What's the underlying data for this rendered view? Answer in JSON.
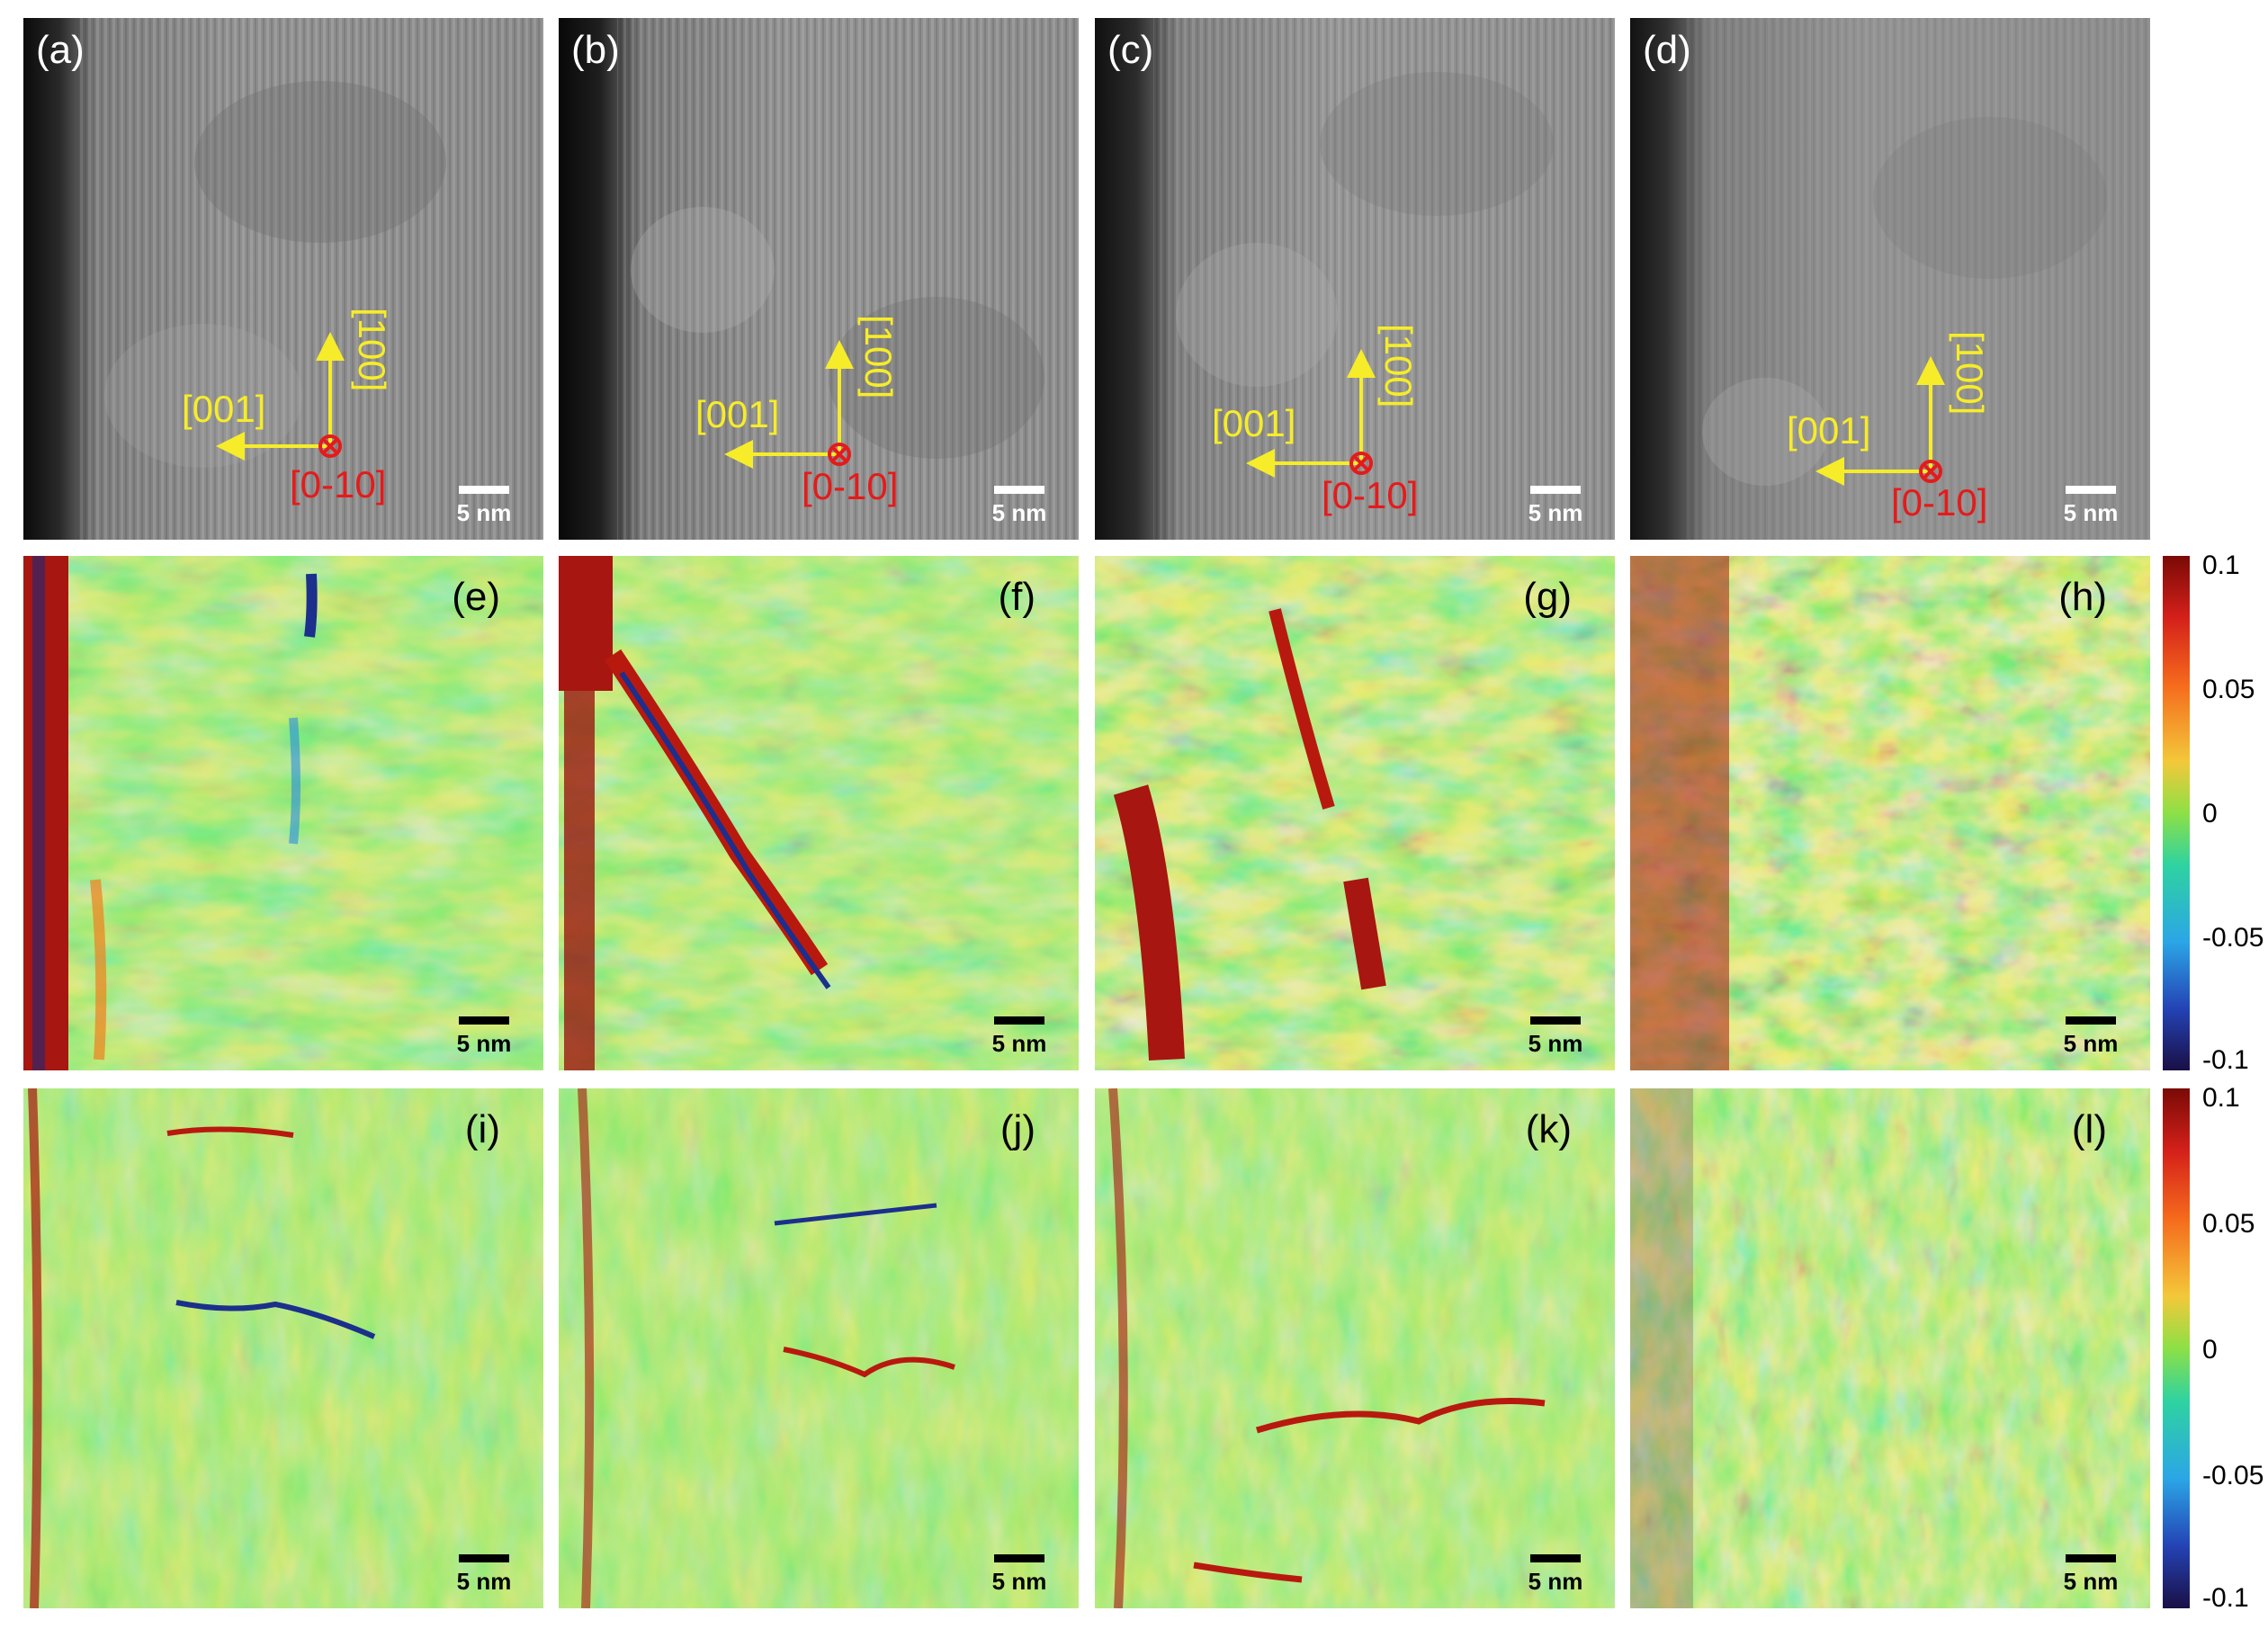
{
  "tem_panels": [
    {
      "label": "(a)",
      "axis_x": "[001]",
      "axis_y": "[100]",
      "axis_z": "[0-10]",
      "scale": "5 nm"
    },
    {
      "label": "(b)",
      "axis_x": "[001]",
      "axis_y": "[100]",
      "axis_z": "[0-10]",
      "scale": "5 nm"
    },
    {
      "label": "(c)",
      "axis_x": "[001]",
      "axis_y": "[100]",
      "axis_z": "[0-10]",
      "scale": "5 nm"
    },
    {
      "label": "(d)",
      "axis_x": "[001]",
      "axis_y": "[100]",
      "axis_z": "[0-10]",
      "scale": "5 nm"
    }
  ],
  "map_row1": [
    {
      "label": "(e)",
      "scale": "5 nm"
    },
    {
      "label": "(f)",
      "scale": "5 nm"
    },
    {
      "label": "(g)",
      "scale": "5 nm"
    },
    {
      "label": "(h)",
      "scale": "5 nm"
    }
  ],
  "map_row2": [
    {
      "label": "(i)",
      "scale": "5 nm"
    },
    {
      "label": "(j)",
      "scale": "5 nm"
    },
    {
      "label": "(k)",
      "scale": "5 nm"
    },
    {
      "label": "(l)",
      "scale": "5 nm"
    }
  ],
  "colorbar": {
    "ticks": [
      "0.1",
      "0.05",
      "0",
      "-0.05",
      "-0.1"
    ],
    "colors": [
      "#7a0a06",
      "#d4201a",
      "#f56a1c",
      "#f3c83a",
      "#8de046",
      "#2fd3a0",
      "#2ba6e6",
      "#2443b5",
      "#1a0f45"
    ]
  },
  "colors": {
    "axis_yellow": "#f6ec2a",
    "axis_red": "#e41b1b"
  }
}
